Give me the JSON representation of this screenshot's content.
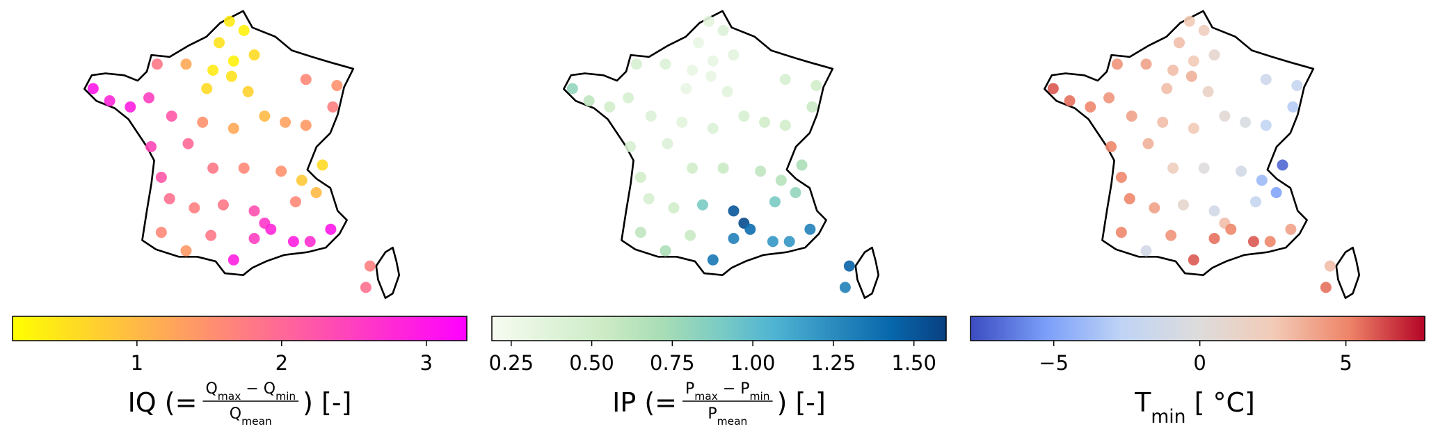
{
  "chart_data": [
    {
      "type": "scatter",
      "x": [
        2.3,
        3.0,
        1.8,
        2.5,
        3.5,
        1.5,
        2.4,
        3.2,
        1.2,
        0.2,
        -1.2,
        -4.3,
        -3.5,
        -2.5,
        -1.6,
        -0.5,
        1.0,
        2.5,
        4.0,
        5.0,
        6.0,
        7.5,
        7.3,
        6.0,
        -1.5,
        0.3,
        1.5,
        3.0,
        4.8,
        5.8,
        6.8,
        6.5,
        5.5,
        -1.0,
        -0.6,
        0.6,
        2.0,
        3.5,
        4.0,
        4.3,
        3.5,
        5.4,
        6.2,
        7.2,
        1.4,
        -1.0,
        0.2,
        2.5,
        9.1,
        8.9
      ],
      "y": [
        50.6,
        50.3,
        49.9,
        49.3,
        49.5,
        49.0,
        48.8,
        48.3,
        48.4,
        49.2,
        49.2,
        48.4,
        48.0,
        47.8,
        48.1,
        47.5,
        47.3,
        47.1,
        47.5,
        47.3,
        48.7,
        48.5,
        47.8,
        47.2,
        46.5,
        46.6,
        45.8,
        45.8,
        45.7,
        45.4,
        45.9,
        45.0,
        44.7,
        45.5,
        44.8,
        44.5,
        44.6,
        44.4,
        44.0,
        43.8,
        43.5,
        43.4,
        43.4,
        43.8,
        43.6,
        43.7,
        43.1,
        42.8,
        42.6,
        41.9
      ],
      "values": [
        0.4,
        0.3,
        0.5,
        0.3,
        0.6,
        0.4,
        0.5,
        0.7,
        0.6,
        1.2,
        1.8,
        3.0,
        2.8,
        2.9,
        2.5,
        2.2,
        1.5,
        1.2,
        1.0,
        1.3,
        1.6,
        1.5,
        1.7,
        1.4,
        2.4,
        2.0,
        1.8,
        1.6,
        1.5,
        0.8,
        0.6,
        1.0,
        1.6,
        2.2,
        1.9,
        1.7,
        1.8,
        2.3,
        2.6,
        2.8,
        2.5,
        2.9,
        2.7,
        3.0,
        1.8,
        1.6,
        1.4,
        2.9,
        1.7,
        1.9
      ],
      "colormap": [
        "#ffff00",
        "#ff00ff"
      ],
      "clim": [
        0.14,
        3.28
      ],
      "cticks": [
        1,
        2,
        3
      ],
      "label": {
        "before": [
          "IQ (="
        ],
        "numerator": [
          "Q",
          "max",
          " − Q",
          "min"
        ],
        "denominator": [
          "Q",
          "mean"
        ],
        "after": [
          ") [-]"
        ]
      }
    },
    {
      "type": "scatter",
      "x": [
        2.3,
        3.0,
        1.8,
        2.5,
        3.5,
        1.5,
        2.4,
        3.2,
        1.2,
        0.2,
        -1.2,
        -4.3,
        -3.5,
        -2.5,
        -1.6,
        -0.5,
        1.0,
        2.5,
        4.0,
        5.0,
        6.0,
        7.5,
        7.3,
        6.0,
        -1.5,
        0.3,
        1.5,
        3.0,
        4.8,
        5.8,
        6.8,
        6.5,
        5.5,
        -1.0,
        -0.6,
        0.6,
        2.0,
        3.5,
        4.0,
        4.3,
        3.5,
        5.4,
        6.2,
        7.2,
        1.4,
        -1.0,
        0.2,
        2.5,
        9.1,
        8.9
      ],
      "y": [
        50.6,
        50.3,
        49.9,
        49.3,
        49.5,
        49.0,
        48.8,
        48.3,
        48.4,
        49.2,
        49.2,
        48.4,
        48.0,
        47.8,
        48.1,
        47.5,
        47.3,
        47.1,
        47.5,
        47.3,
        48.7,
        48.5,
        47.8,
        47.2,
        46.5,
        46.6,
        45.8,
        45.8,
        45.7,
        45.4,
        45.9,
        45.0,
        44.7,
        45.5,
        44.8,
        44.5,
        44.6,
        44.4,
        44.0,
        43.8,
        43.5,
        43.4,
        43.4,
        43.8,
        43.6,
        43.7,
        43.1,
        42.8,
        42.6,
        41.9
      ],
      "values": [
        0.35,
        0.4,
        0.3,
        0.3,
        0.35,
        0.3,
        0.3,
        0.35,
        0.3,
        0.4,
        0.45,
        0.8,
        0.6,
        0.5,
        0.45,
        0.4,
        0.35,
        0.4,
        0.45,
        0.5,
        0.45,
        0.5,
        0.55,
        0.5,
        0.45,
        0.4,
        0.5,
        0.55,
        0.6,
        0.65,
        0.7,
        0.8,
        0.9,
        0.5,
        0.45,
        0.5,
        0.9,
        1.5,
        1.55,
        1.4,
        1.3,
        1.2,
        1.2,
        1.3,
        0.55,
        0.6,
        0.7,
        1.35,
        1.45,
        1.3
      ],
      "colormap": [
        "#f7fcf0",
        "#e0f3db",
        "#ccebc5",
        "#a8ddb5",
        "#7bccc4",
        "#4eb3d3",
        "#2b8cbe",
        "#0868ac",
        "#084081"
      ],
      "clim": [
        0.19,
        1.6
      ],
      "cticks": [
        {
          "value": 0.25,
          "label": "0.25"
        },
        {
          "value": 0.5,
          "label": "0.50"
        },
        {
          "value": 0.75,
          "label": "0.75"
        },
        {
          "value": 1.0,
          "label": "1.00"
        },
        {
          "value": 1.25,
          "label": "1.25"
        },
        {
          "value": 1.5,
          "label": "1.50"
        }
      ],
      "label": {
        "before": [
          "IP (="
        ],
        "numerator": [
          "P",
          "max",
          " − P",
          "min"
        ],
        "denominator": [
          "P",
          "mean"
        ],
        "after": [
          ") [-]"
        ]
      }
    },
    {
      "type": "scatter",
      "x": [
        2.3,
        3.0,
        1.8,
        2.5,
        3.5,
        1.5,
        2.4,
        3.2,
        1.2,
        0.2,
        -1.2,
        -4.3,
        -3.5,
        -2.5,
        -1.6,
        -0.5,
        1.0,
        2.5,
        4.0,
        5.0,
        6.0,
        7.5,
        7.3,
        6.0,
        -1.5,
        0.3,
        1.5,
        3.0,
        4.8,
        5.8,
        6.8,
        6.5,
        5.5,
        -1.0,
        -0.6,
        0.6,
        2.0,
        3.5,
        4.0,
        4.3,
        3.5,
        5.4,
        6.2,
        7.2,
        1.4,
        -1.0,
        0.2,
        2.5,
        9.1,
        8.9
      ],
      "y": [
        50.6,
        50.3,
        49.9,
        49.3,
        49.5,
        49.0,
        48.8,
        48.3,
        48.4,
        49.2,
        49.2,
        48.4,
        48.0,
        47.8,
        48.1,
        47.5,
        47.3,
        47.1,
        47.5,
        47.3,
        48.7,
        48.5,
        47.8,
        47.2,
        46.5,
        46.6,
        45.8,
        45.8,
        45.7,
        45.4,
        45.9,
        45.0,
        44.7,
        45.5,
        44.8,
        44.5,
        44.6,
        44.4,
        44.0,
        43.8,
        43.5,
        43.4,
        43.4,
        43.8,
        43.6,
        43.7,
        43.1,
        42.8,
        42.6,
        41.9
      ],
      "values": [
        2.5,
        2,
        3,
        2.5,
        1,
        3,
        3.5,
        1.5,
        3,
        4,
        4.5,
        6,
        5.5,
        5,
        4.5,
        4,
        3,
        2.5,
        0.5,
        -0.5,
        -1.5,
        -2,
        -3,
        -2.5,
        5,
        3.5,
        2,
        0,
        -1,
        -4,
        -7,
        -5,
        -2,
        5,
        5,
        4,
        1,
        -1,
        3,
        5,
        5.5,
        6,
        5,
        4,
        4.5,
        5,
        -1,
        6,
        3,
        5.5
      ],
      "colormap": [
        "#3b4cc0",
        "#7b9ff9",
        "#c0d4f5",
        "#dddcdc",
        "#f2cbb7",
        "#ee8468",
        "#b40426"
      ],
      "clim": [
        -7.85,
        7.7
      ],
      "cticks": [
        {
          "value": -5,
          "label": "−5"
        },
        0,
        5
      ],
      "label": {
        "before": [
          "T",
          "min",
          " [ °C]"
        ]
      }
    }
  ]
}
